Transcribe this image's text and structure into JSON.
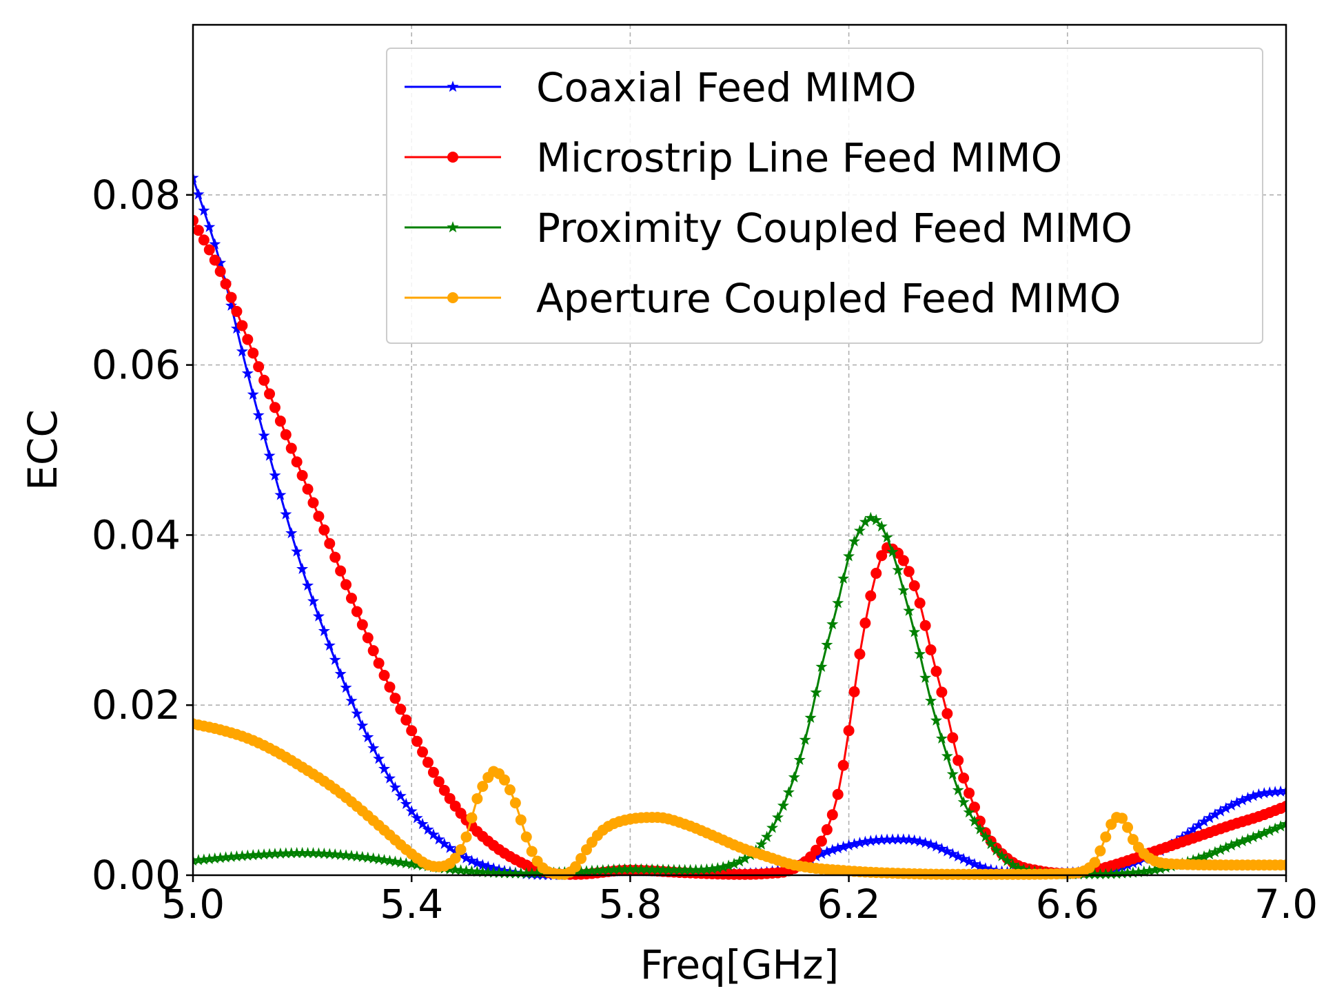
{
  "chart_data": {
    "type": "line",
    "title": "",
    "xlabel": "Freq[GHz]",
    "ylabel": "ECC",
    "xlim": [
      5.0,
      7.0
    ],
    "ylim": [
      0.0,
      0.1
    ],
    "xticks": [
      5.0,
      5.4,
      5.8,
      6.2,
      6.6,
      7.0
    ],
    "xtick_labels": [
      "5.0",
      "5.4",
      "5.8",
      "6.2",
      "6.6",
      "7.0"
    ],
    "yticks": [
      0.0,
      0.02,
      0.04,
      0.06,
      0.08
    ],
    "ytick_labels": [
      "0.00",
      "0.02",
      "0.04",
      "0.06",
      "0.08"
    ],
    "grid": true,
    "legend_position": "top-right",
    "series": [
      {
        "name": "Coaxial Feed MIMO",
        "color": "#0000ff",
        "marker": "star",
        "x": [
          5.0,
          5.05,
          5.1,
          5.15,
          5.2,
          5.25,
          5.3,
          5.35,
          5.4,
          5.45,
          5.5,
          5.55,
          5.6,
          5.65,
          5.7,
          5.8,
          5.9,
          6.0,
          6.1,
          6.15,
          6.2,
          6.25,
          6.3,
          6.35,
          6.4,
          6.45,
          6.5,
          6.55,
          6.6,
          6.65,
          6.7,
          6.75,
          6.8,
          6.85,
          6.9,
          6.95,
          7.0
        ],
        "y": [
          0.082,
          0.072,
          0.059,
          0.047,
          0.036,
          0.027,
          0.019,
          0.0125,
          0.0075,
          0.0042,
          0.002,
          0.0008,
          0.0002,
          0.0,
          0.0001,
          0.0005,
          0.0003,
          0.0002,
          0.001,
          0.0025,
          0.0035,
          0.0041,
          0.0042,
          0.0036,
          0.0022,
          0.0008,
          0.0003,
          0.0002,
          0.0003,
          0.0005,
          0.001,
          0.0022,
          0.004,
          0.0063,
          0.0082,
          0.0095,
          0.0099
        ]
      },
      {
        "name": "Microstrip Line Feed MIMO",
        "color": "#ff0000",
        "marker": "circle",
        "x": [
          5.0,
          5.05,
          5.1,
          5.15,
          5.2,
          5.25,
          5.3,
          5.35,
          5.4,
          5.45,
          5.5,
          5.55,
          5.6,
          5.65,
          5.7,
          5.8,
          5.9,
          6.0,
          6.05,
          6.1,
          6.15,
          6.18,
          6.2,
          6.22,
          6.25,
          6.27,
          6.3,
          6.33,
          6.35,
          6.38,
          6.4,
          6.43,
          6.45,
          6.5,
          6.55,
          6.6,
          6.65,
          6.7,
          6.75,
          6.8,
          6.85,
          6.9,
          6.95,
          7.0
        ],
        "y": [
          0.077,
          0.071,
          0.063,
          0.055,
          0.047,
          0.039,
          0.031,
          0.0235,
          0.017,
          0.011,
          0.0065,
          0.0035,
          0.0015,
          0.0003,
          0.0001,
          0.0006,
          0.0003,
          0.0001,
          0.0002,
          0.0008,
          0.004,
          0.0095,
          0.017,
          0.026,
          0.0355,
          0.0385,
          0.037,
          0.032,
          0.0265,
          0.019,
          0.0135,
          0.008,
          0.005,
          0.0015,
          0.0005,
          0.0002,
          0.0006,
          0.0015,
          0.0026,
          0.0037,
          0.0048,
          0.0059,
          0.0069,
          0.0081
        ]
      },
      {
        "name": "Proximity Coupled Feed MIMO",
        "color": "#008000",
        "marker": "star",
        "x": [
          5.0,
          5.1,
          5.2,
          5.3,
          5.4,
          5.5,
          5.6,
          5.7,
          5.8,
          5.9,
          6.0,
          6.05,
          6.1,
          6.13,
          6.15,
          6.18,
          6.2,
          6.22,
          6.24,
          6.26,
          6.28,
          6.3,
          6.33,
          6.35,
          6.38,
          6.4,
          6.45,
          6.5,
          6.55,
          6.6,
          6.65,
          6.7,
          6.75,
          6.8,
          6.85,
          6.9,
          6.95,
          7.0
        ],
        "y": [
          0.0017,
          0.0023,
          0.0026,
          0.0022,
          0.0013,
          0.0005,
          0.0002,
          0.0004,
          0.0007,
          0.0006,
          0.0016,
          0.0045,
          0.0115,
          0.0185,
          0.0245,
          0.032,
          0.0375,
          0.0405,
          0.042,
          0.041,
          0.038,
          0.0335,
          0.026,
          0.0205,
          0.014,
          0.01,
          0.0045,
          0.0012,
          0.0003,
          0.0001,
          0.0001,
          0.0002,
          0.0005,
          0.0012,
          0.0022,
          0.0035,
          0.0047,
          0.006
        ]
      },
      {
        "name": "Aperture Coupled Feed MIMO",
        "color": "#ffa500",
        "marker": "circle",
        "x": [
          5.0,
          5.05,
          5.1,
          5.15,
          5.2,
          5.25,
          5.3,
          5.35,
          5.4,
          5.43,
          5.45,
          5.48,
          5.5,
          5.52,
          5.54,
          5.55,
          5.57,
          5.59,
          5.6,
          5.62,
          5.65,
          5.68,
          5.7,
          5.72,
          5.75,
          5.8,
          5.85,
          5.9,
          5.95,
          6.0,
          6.05,
          6.1,
          6.2,
          6.3,
          6.4,
          6.5,
          6.6,
          6.65,
          6.67,
          6.69,
          6.7,
          6.72,
          6.75,
          6.8,
          6.9,
          7.0
        ],
        "y": [
          0.0178,
          0.0171,
          0.0161,
          0.0146,
          0.0127,
          0.0106,
          0.0081,
          0.0053,
          0.0025,
          0.0012,
          0.001,
          0.002,
          0.0045,
          0.009,
          0.0115,
          0.0122,
          0.0112,
          0.0085,
          0.0065,
          0.0028,
          0.0004,
          0.0001,
          0.001,
          0.003,
          0.0053,
          0.0066,
          0.0068,
          0.006,
          0.0047,
          0.0033,
          0.0022,
          0.0012,
          0.0005,
          0.0002,
          0.0001,
          0.0001,
          0.0002,
          0.0015,
          0.0045,
          0.0068,
          0.0067,
          0.0042,
          0.002,
          0.0013,
          0.0012,
          0.0012
        ]
      }
    ]
  }
}
